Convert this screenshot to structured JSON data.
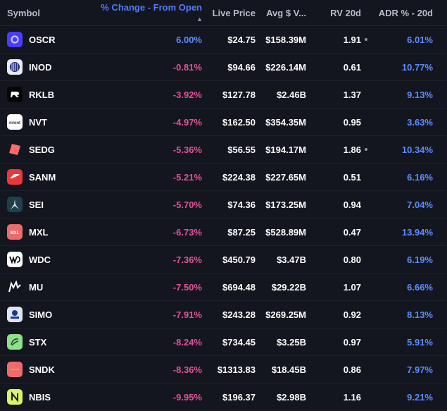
{
  "columns": {
    "symbol": "Symbol",
    "change": "% Change - From Open",
    "price": "Live Price",
    "avg": "Avg $ V...",
    "rv": "RV 20d",
    "adr": "ADR % - 20d"
  },
  "rows": [
    {
      "ticker": "OSCR",
      "change": "6.00%",
      "price": "$24.75",
      "avg": "$158.39M",
      "rv": "1.91",
      "dot": true,
      "adr": "6.01%",
      "logo": "oscr"
    },
    {
      "ticker": "INOD",
      "change": "-0.81%",
      "price": "$94.66",
      "avg": "$226.14M",
      "rv": "0.61",
      "dot": false,
      "adr": "10.77%",
      "logo": "inod"
    },
    {
      "ticker": "RKLB",
      "change": "-3.92%",
      "price": "$127.78",
      "avg": "$2.46B",
      "rv": "1.37",
      "dot": false,
      "adr": "9.13%",
      "logo": "rklb"
    },
    {
      "ticker": "NVT",
      "change": "-4.97%",
      "price": "$162.50",
      "avg": "$354.35M",
      "rv": "0.95",
      "dot": false,
      "adr": "3.63%",
      "logo": "nvt"
    },
    {
      "ticker": "SEDG",
      "change": "-5.36%",
      "price": "$56.55",
      "avg": "$194.17M",
      "rv": "1.86",
      "dot": true,
      "adr": "10.34%",
      "logo": "sedg"
    },
    {
      "ticker": "SANM",
      "change": "-5.21%",
      "price": "$224.38",
      "avg": "$227.65M",
      "rv": "0.51",
      "dot": false,
      "adr": "6.16%",
      "logo": "sanm"
    },
    {
      "ticker": "SEI",
      "change": "-5.70%",
      "price": "$74.36",
      "avg": "$173.25M",
      "rv": "0.94",
      "dot": false,
      "adr": "7.04%",
      "logo": "sei"
    },
    {
      "ticker": "MXL",
      "change": "-6.73%",
      "price": "$87.25",
      "avg": "$528.89M",
      "rv": "0.47",
      "dot": false,
      "adr": "13.94%",
      "logo": "mxl"
    },
    {
      "ticker": "WDC",
      "change": "-7.36%",
      "price": "$450.79",
      "avg": "$3.47B",
      "rv": "0.80",
      "dot": false,
      "adr": "6.19%",
      "logo": "wdc"
    },
    {
      "ticker": "MU",
      "change": "-7.50%",
      "price": "$694.48",
      "avg": "$29.22B",
      "rv": "1.07",
      "dot": false,
      "adr": "6.66%",
      "logo": "mu"
    },
    {
      "ticker": "SIMO",
      "change": "-7.91%",
      "price": "$243.28",
      "avg": "$269.25M",
      "rv": "0.92",
      "dot": false,
      "adr": "8.13%",
      "logo": "simo"
    },
    {
      "ticker": "STX",
      "change": "-8.24%",
      "price": "$734.45",
      "avg": "$3.25B",
      "rv": "0.97",
      "dot": false,
      "adr": "5.91%",
      "logo": "stx"
    },
    {
      "ticker": "SNDK",
      "change": "-8.36%",
      "price": "$1313.83",
      "avg": "$18.45B",
      "rv": "0.86",
      "dot": false,
      "adr": "7.97%",
      "logo": "sndk"
    },
    {
      "ticker": "NBIS",
      "change": "-9.95%",
      "price": "$196.37",
      "avg": "$2.98B",
      "rv": "1.16",
      "dot": false,
      "adr": "9.21%",
      "logo": "nbis"
    }
  ]
}
